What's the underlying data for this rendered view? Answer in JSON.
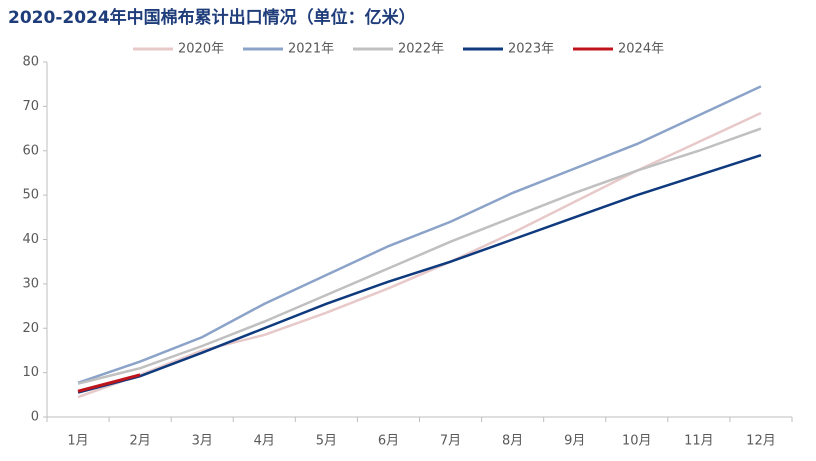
{
  "chart_data": {
    "type": "line",
    "title": "2020-2024年中国棉布累计出口情况（单位：亿米）",
    "categories": [
      "1月",
      "2月",
      "3月",
      "4月",
      "5月",
      "6月",
      "7月",
      "8月",
      "9月",
      "10月",
      "11月",
      "12月"
    ],
    "series": [
      {
        "name": "2020年",
        "color": "#e8c9c9",
        "values": [
          4.5,
          9.5,
          15,
          18.5,
          23.5,
          29,
          35,
          41.5,
          48.5,
          55.5,
          62,
          68.5
        ]
      },
      {
        "name": "2021年",
        "color": "#8ca3c9",
        "values": [
          7.7,
          12.5,
          18,
          25.5,
          32,
          38.5,
          44,
          50.5,
          56,
          61.5,
          68,
          74.5
        ]
      },
      {
        "name": "2022年",
        "color": "#c0c0c0",
        "values": [
          7.5,
          11,
          16,
          21.5,
          27.5,
          33.5,
          39.5,
          45,
          50.5,
          55.5,
          60,
          65
        ]
      },
      {
        "name": "2023年",
        "color": "#0f3a7e",
        "values": [
          5.5,
          9.2,
          14.5,
          20,
          25.5,
          30.5,
          35,
          40,
          45,
          50,
          54.5,
          59
        ]
      },
      {
        "name": "2024年",
        "color": "#c0141c",
        "values": [
          5.8,
          9.5,
          null,
          null,
          null,
          null,
          null,
          null,
          null,
          null,
          null,
          null
        ]
      }
    ],
    "ylim": [
      0,
      80
    ],
    "yticks": [
      0,
      10,
      20,
      30,
      40,
      50,
      60,
      70,
      80
    ]
  }
}
